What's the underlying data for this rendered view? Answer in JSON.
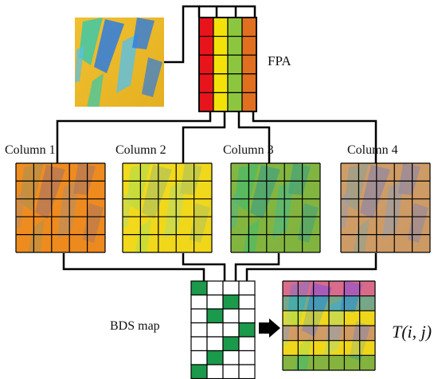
{
  "diagram": {
    "fpa_label": "FPA",
    "column_labels": [
      "Column 1",
      "Column 2",
      "Column 3",
      "Column 4"
    ],
    "bds_map_label": "BDS map",
    "output_label": "T(i, j)",
    "fpa_column_colors": [
      "#e8141c",
      "#f2e20a",
      "#8cc63e",
      "#e07020"
    ],
    "column_tints": [
      "#f07a1c",
      "#f4e416",
      "#5ab44a",
      "#c4907e"
    ],
    "scene_colors": {
      "base": "#e6b828",
      "streak_blue": "#2e7ce0",
      "streak_green": "#3ec8a8",
      "streak_cyan": "#58c0e8"
    },
    "bds_map_selected": [
      [
        0,
        0
      ],
      [
        1,
        2
      ],
      [
        2,
        1
      ],
      [
        3,
        3
      ],
      [
        4,
        2
      ],
      [
        5,
        1
      ],
      [
        6,
        0
      ]
    ],
    "output_row_tints": [
      "#d04ab4",
      "#44a0b0",
      "#f4e416",
      "#c4907e",
      "#f4e416",
      "#5ab44a"
    ],
    "arrow_icon": "right-arrow-icon"
  }
}
